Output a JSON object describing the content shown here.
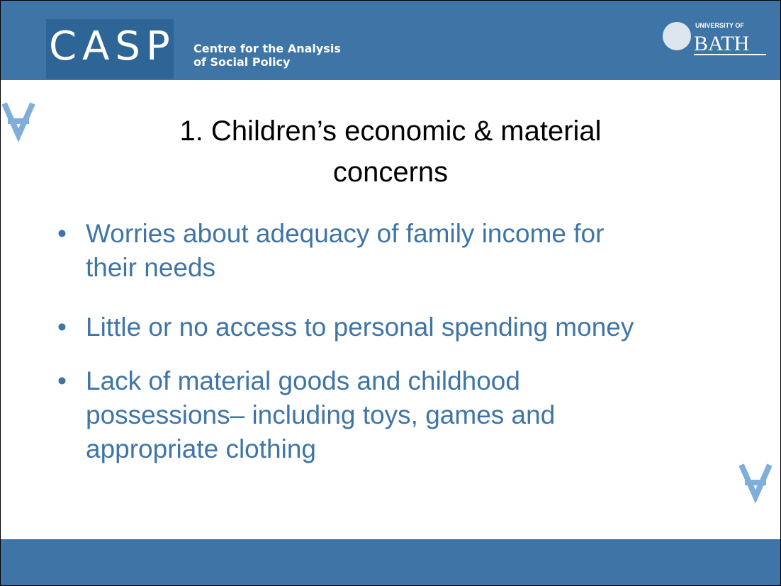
{
  "header": {
    "logo": "CASP",
    "org_line1": "Centre for the Analysis",
    "org_line2": "of Social Policy",
    "university_top": "UNIVERSITY OF",
    "university_name": "BATH"
  },
  "title_line1": "1. Children’s economic & material",
  "title_line2": "concerns",
  "bullets": [
    {
      "lines": [
        "Worries about adequacy of family income for",
        "their needs"
      ]
    },
    {
      "lines": [
        "Little or no access to personal spending money"
      ]
    },
    {
      "lines": [
        "Lack of material goods and childhood",
        "possessions– including toys, games and",
        "appropriate clothing"
      ]
    }
  ]
}
